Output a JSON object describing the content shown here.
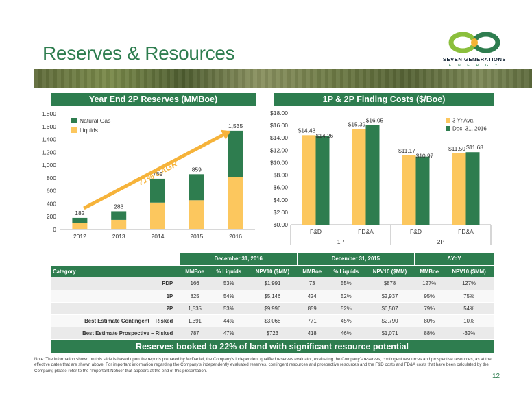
{
  "page": {
    "title": "Reserves & Resources",
    "page_number": "12",
    "logo": {
      "name": "SEVEN GENERATIONS",
      "sub": "E N E R G Y",
      "icon": "infinity-logo-icon"
    }
  },
  "left_section": {
    "heading": "Year End 2P Reserves (MMBoe)"
  },
  "right_section": {
    "heading": "1P & 2P Finding Costs ($/Boe)"
  },
  "colors": {
    "green": "#2e7d4f",
    "yellow": "#fcc75e",
    "light_green": "#3aa655"
  },
  "chart_data": [
    {
      "type": "bar",
      "stacked": true,
      "title": "Year End 2P Reserves (MMBoe)",
      "categories": [
        "2012",
        "2013",
        "2014",
        "2015",
        "2016"
      ],
      "series": [
        {
          "name": "Liquids",
          "values": [
            96,
            150,
            418,
            455,
            815
          ]
        },
        {
          "name": "Natural Gas",
          "values": [
            86,
            133,
            371,
            404,
            720
          ]
        }
      ],
      "totals": [
        "182",
        "283",
        "789",
        "859",
        "1,535"
      ],
      "ylim": [
        0,
        1800
      ],
      "yticks": [
        "0",
        "200",
        "400",
        "600",
        "800",
        "1,000",
        "1,200",
        "1,400",
        "1,600",
        "1,800"
      ],
      "annotation": "71% CAGR",
      "legend": "top-left",
      "grid": false
    },
    {
      "type": "bar",
      "title": "1P & 2P Finding Costs ($/Boe)",
      "categories": [
        "F&D",
        "FD&A",
        "F&D",
        "FD&A"
      ],
      "groups": [
        "1P",
        "2P"
      ],
      "series": [
        {
          "name": "3 Yr Avg.",
          "values": [
            14.43,
            15.39,
            11.17,
            11.5
          ],
          "labels": [
            "$14.43",
            "$15.39",
            "$11.17",
            "$11.50"
          ]
        },
        {
          "name": "Dec. 31, 2016",
          "values": [
            14.26,
            16.05,
            10.97,
            11.68
          ],
          "labels": [
            "$14.26",
            "$16.05",
            "$10.97",
            "$11.68"
          ]
        }
      ],
      "ylim": [
        0,
        18
      ],
      "yticks": [
        "$0.00",
        "$2.00",
        "$4.00",
        "$6.00",
        "$8.00",
        "$10.00",
        "$12.00",
        "$14.00",
        "$16.00",
        "$18.00"
      ],
      "legend": "top-right",
      "grid": false
    }
  ],
  "table": {
    "groups": [
      "December 31, 2016",
      "December 31, 2015",
      "ΔYoY"
    ],
    "headers": [
      "Category",
      "MMBoe",
      "% Liquids",
      "NPV10 ($MM)",
      "MMBoe",
      "% Liquids",
      "NPV10 ($MM)",
      "MMBoe",
      "NPV10 ($MM)"
    ],
    "rows": [
      [
        "PDP",
        "166",
        "53%",
        "$1,991",
        "73",
        "55%",
        "$878",
        "127%",
        "127%"
      ],
      [
        "1P",
        "825",
        "54%",
        "$5,146",
        "424",
        "52%",
        "$2,937",
        "95%",
        "75%"
      ],
      [
        "2P",
        "1,535",
        "53%",
        "$9,996",
        "859",
        "52%",
        "$6,507",
        "79%",
        "54%"
      ],
      [
        "Best Estimate Contingent – Risked",
        "1,391",
        "44%",
        "$3,068",
        "771",
        "45%",
        "$2,790",
        "80%",
        "10%"
      ],
      [
        "Best Estimate Prospective – Risked",
        "787",
        "47%",
        "$723",
        "418",
        "46%",
        "$1,071",
        "88%",
        "-32%"
      ]
    ]
  },
  "bottom_banner": "Reserves booked to 22% of land with significant resource potential",
  "note": "Note: The information shown on this slide is based upon the reports prepared by McDaniel, the Company's independent qualified reserves evaluator, evaluating the Company's reserves, contingent resources and prospective resources, as at the effective dates that are shown above. For important information regarding the Company's independently evaluated reserves, contingent resources and prospective resources and the F&D costs and FD&A costs that have been calculated by the Company, please refer to the \"Important Notice\" that appears at the end of this presentation."
}
